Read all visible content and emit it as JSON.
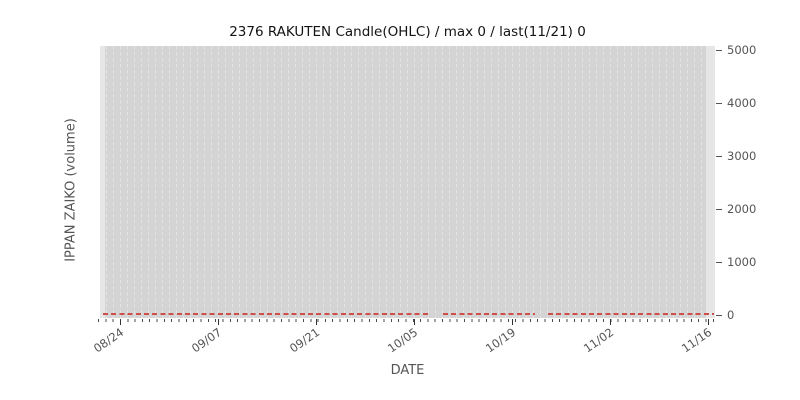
{
  "chart_data": {
    "type": "line",
    "title": "2376 RAKUTEN Candle(OHLC) / max 0 / last(11/21) 0",
    "xlabel": "DATE",
    "ylabel": "IPPAN ZAIKO (volume)",
    "x_tick_labels": [
      "08/24",
      "09/07",
      "09/21",
      "10/05",
      "10/19",
      "11/02",
      "11/16"
    ],
    "y_tick_labels": [
      "0",
      "1000",
      "2000",
      "3000",
      "4000",
      "5000"
    ],
    "y_tick_values": [
      0,
      1000,
      2000,
      3000,
      4000,
      5000
    ],
    "ylim": [
      0,
      5000
    ],
    "x_range_dates": [
      "08/24",
      "11/21"
    ],
    "grid": "daily vertical dashed gridlines on gray panel, y-axis labels on right side",
    "legend": "none",
    "series": [
      {
        "name": "IPPAN ZAIKO (volume)",
        "type": "line",
        "line_style": "dashed",
        "color": "#cc4f4a",
        "constant_value": 0,
        "max": 0,
        "last_date": "11/21",
        "last_value": 0,
        "note": "flat at 0 across the whole date range with two short missing-data gaps (near 10/09 and 10/24)"
      }
    ]
  },
  "colors": {
    "figure_bg": "#ffffff",
    "panel_bg": "#d4d4d4",
    "gridline": "#e3e3e3",
    "panel_edge_fade": "#e6e6e6",
    "tick_text": "#555555",
    "axis_label_text": "#555555",
    "title_text": "#141414",
    "zero_line": "#cc4f4a"
  }
}
